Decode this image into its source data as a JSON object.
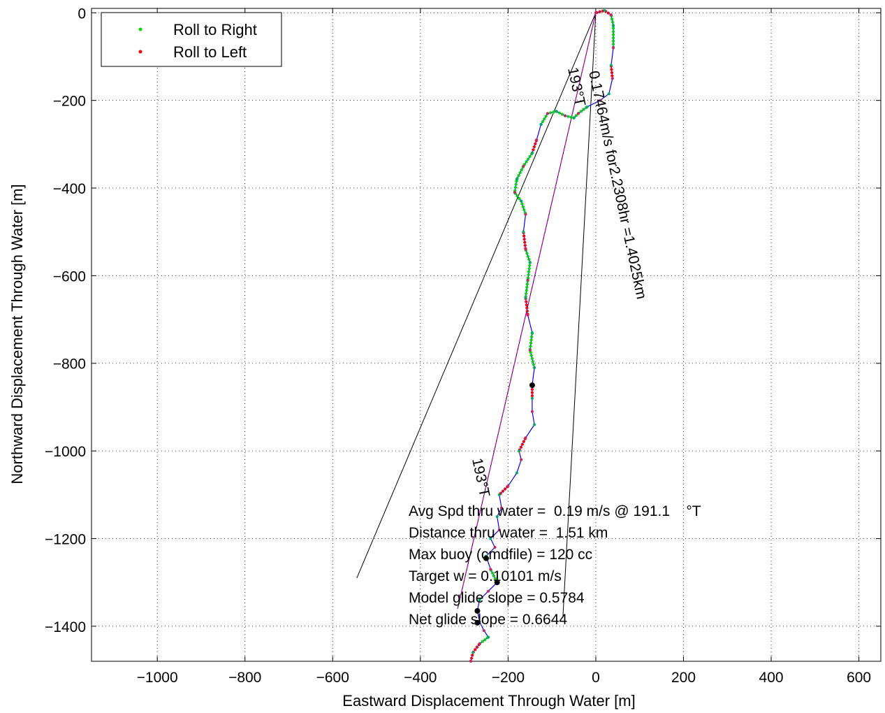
{
  "chart_data": {
    "type": "scatter",
    "xlabel": "Eastward Displacement Through Water [m]",
    "ylabel": "Northward Displacement Through Water [m]",
    "xlim": [
      -1150,
      650
    ],
    "ylim": [
      -1480,
      10
    ],
    "xticks": [
      -1000,
      -800,
      -600,
      -400,
      -200,
      0,
      200,
      400,
      600
    ],
    "yticks": [
      0,
      -200,
      -400,
      -600,
      -800,
      -1000,
      -1200,
      -1400
    ],
    "xtick_labels": [
      "−1000",
      "−800",
      "−600",
      "−400",
      "−200",
      "0",
      "200",
      "400",
      "600"
    ],
    "ytick_labels": [
      "0",
      "−200",
      "−400",
      "−600",
      "−800",
      "−1000",
      "−1200",
      "−1400"
    ],
    "grid": true,
    "legend": {
      "placement": "top-left",
      "entries": [
        {
          "label": "Roll to Right",
          "color": "#00dd00"
        },
        {
          "label": "Roll to Left",
          "color": "#ff0000"
        }
      ]
    },
    "track": [
      [
        0,
        0
      ],
      [
        20,
        5
      ],
      [
        35,
        -5
      ],
      [
        40,
        -30
      ],
      [
        40,
        -80
      ],
      [
        35,
        -120
      ],
      [
        38,
        -150
      ],
      [
        30,
        -185
      ],
      [
        10,
        -200
      ],
      [
        -20,
        -215
      ],
      [
        -40,
        -230
      ],
      [
        -50,
        -240
      ],
      [
        -70,
        -235
      ],
      [
        -90,
        -225
      ],
      [
        -110,
        -230
      ],
      [
        -125,
        -255
      ],
      [
        -135,
        -290
      ],
      [
        -145,
        -320
      ],
      [
        -165,
        -350
      ],
      [
        -180,
        -380
      ],
      [
        -185,
        -410
      ],
      [
        -170,
        -430
      ],
      [
        -160,
        -460
      ],
      [
        -165,
        -500
      ],
      [
        -160,
        -540
      ],
      [
        -150,
        -570
      ],
      [
        -155,
        -610
      ],
      [
        -160,
        -650
      ],
      [
        -155,
        -690
      ],
      [
        -145,
        -730
      ],
      [
        -150,
        -770
      ],
      [
        -140,
        -810
      ],
      [
        -145,
        -850
      ],
      [
        -145,
        -880
      ],
      [
        -145,
        -910
      ],
      [
        -140,
        -940
      ],
      [
        -160,
        -970
      ],
      [
        -175,
        -1000
      ],
      [
        -170,
        -1020
      ],
      [
        -180,
        -1050
      ],
      [
        -200,
        -1080
      ],
      [
        -220,
        -1100
      ],
      [
        -215,
        -1130
      ],
      [
        -225,
        -1150
      ],
      [
        -220,
        -1180
      ],
      [
        -240,
        -1200
      ],
      [
        -230,
        -1220
      ],
      [
        -250,
        -1240
      ],
      [
        -240,
        -1270
      ],
      [
        -225,
        -1300
      ],
      [
        -245,
        -1320
      ],
      [
        -265,
        -1340
      ],
      [
        -270,
        -1365
      ],
      [
        -265,
        -1390
      ],
      [
        -255,
        -1410
      ],
      [
        -245,
        -1425
      ],
      [
        -265,
        -1440
      ],
      [
        -280,
        -1460
      ],
      [
        -285,
        -1480
      ]
    ],
    "roll_right_segments": [
      [
        2,
        4
      ],
      [
        9,
        15
      ],
      [
        17,
        22
      ],
      [
        24,
        27
      ],
      [
        29,
        31
      ],
      [
        48,
        49
      ],
      [
        55,
        56
      ]
    ],
    "roll_left_segments": [
      [
        0,
        2
      ],
      [
        5,
        6
      ],
      [
        16,
        17
      ],
      [
        23,
        24
      ],
      [
        27,
        28
      ],
      [
        32,
        33
      ],
      [
        36,
        37
      ],
      [
        40,
        41
      ],
      [
        56,
        58
      ]
    ],
    "black_points": [
      [
        -145,
        -850
      ],
      [
        -250,
        -1245
      ],
      [
        -225,
        -1300
      ],
      [
        -270,
        -1365
      ],
      [
        -270,
        -1392
      ]
    ],
    "lines": [
      {
        "from": [
          0,
          0
        ],
        "to": [
          -545,
          -1290
        ]
      },
      {
        "from": [
          0,
          0
        ],
        "to": [
          -315,
          -1360
        ]
      },
      {
        "from": [
          0,
          0
        ],
        "to": [
          -75,
          -1380
        ]
      }
    ],
    "magenta_line": {
      "from": [
        0,
        0
      ],
      "to": [
        -315,
        -1360
      ]
    },
    "annotations": {
      "current": "0.17464m/s for2.2308hr =1.4025km",
      "heading_top": "193°T",
      "heading_bottom": "193°T"
    },
    "stats": [
      "Avg Spd thru water =  0.19 m/s @ 191.1    °T",
      "Distance thru water =  1.51 km",
      "Max buoy (cmdfile) = 120 cc",
      "Target w = 0.10101 m/s",
      "Model glide slope = 0.5784",
      "Net glide slope = 0.6644"
    ]
  }
}
